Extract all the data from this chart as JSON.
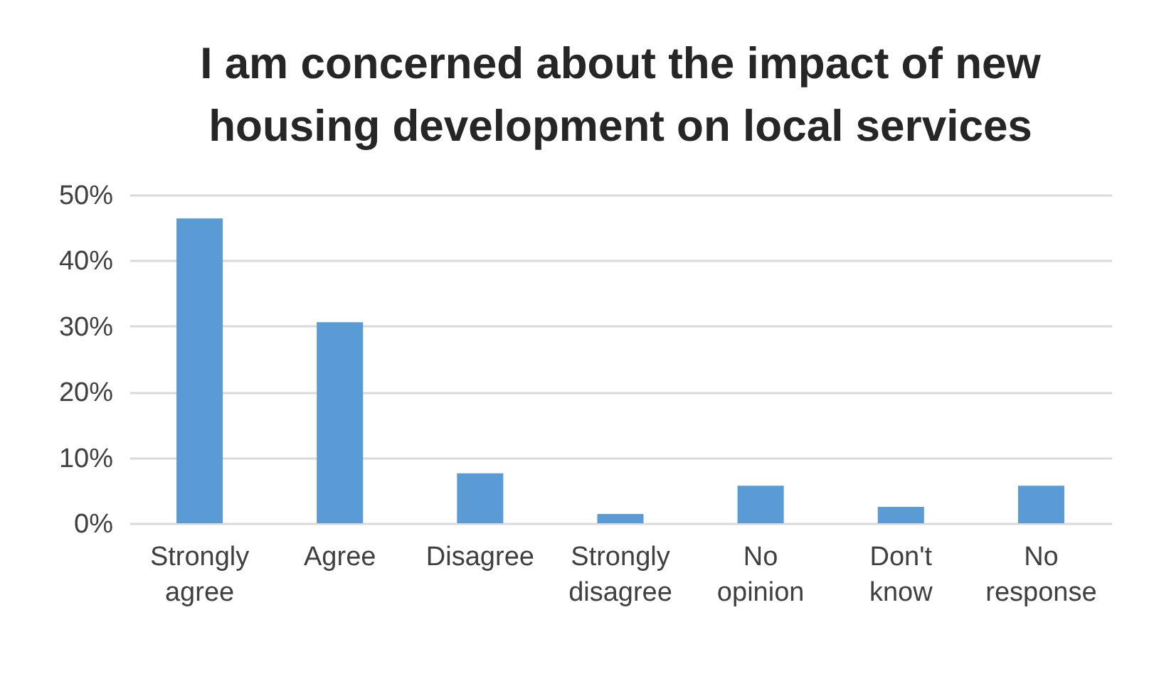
{
  "chart_data": {
    "type": "bar",
    "title": "I am concerned about the impact of new housing development on local services",
    "categories": [
      "Strongly agree",
      "Agree",
      "Disagree",
      "Strongly disagree",
      "No opinion",
      "Don't know",
      "No response"
    ],
    "values": [
      46.4,
      30.6,
      7.6,
      1.4,
      5.7,
      2.5,
      5.7
    ],
    "color": "#5b9bd5",
    "ylim": [
      0,
      50
    ],
    "yticks": [
      {
        "value": 0,
        "label": "0%"
      },
      {
        "value": 10,
        "label": "10%"
      },
      {
        "value": 20,
        "label": "20%"
      },
      {
        "value": 30,
        "label": "30%"
      },
      {
        "value": 40,
        "label": "40%"
      },
      {
        "value": 50,
        "label": "50%"
      }
    ],
    "grid": "y"
  }
}
